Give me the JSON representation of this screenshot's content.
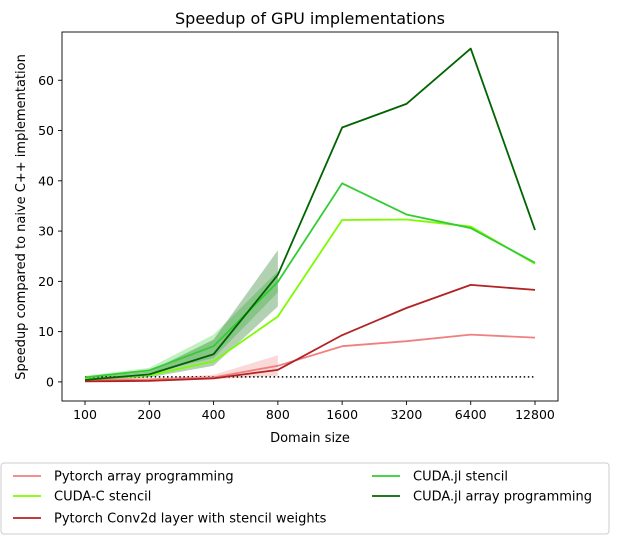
{
  "chart_data": {
    "type": "line",
    "title": "Speedup of GPU implementations",
    "xlabel": "Domain size",
    "ylabel": "Speedup compared to naive C++ implementation",
    "x": [
      "100",
      "200",
      "400",
      "800",
      "1600",
      "3200",
      "6400",
      "12800"
    ],
    "y_ticks": [
      0,
      10,
      20,
      30,
      40,
      50,
      60
    ],
    "ylim": [
      -3.8,
      69.6
    ],
    "grid": false,
    "legend_placement": "below",
    "baseline": {
      "y": 1,
      "style": "dotted",
      "color": "#000000"
    },
    "series": [
      {
        "name": "Pytorch array programming",
        "color": "#f08080",
        "values": [
          0.4,
          0.5,
          0.9,
          3.2,
          7.1,
          8.1,
          9.4,
          8.8
        ],
        "band_upper": [
          0.6,
          0.7,
          1.4,
          5.3
        ],
        "band_lower": [
          0.2,
          0.3,
          0.5,
          1.2
        ]
      },
      {
        "name": "CUDA-C stencil",
        "color": "#7cfc00",
        "values": [
          0.5,
          1.3,
          4.1,
          13.0,
          32.2,
          32.3,
          30.9,
          23.5
        ]
      },
      {
        "name": "Pytorch Conv2d layer with stencil weights",
        "color": "#b22222",
        "values": [
          0.1,
          0.2,
          0.7,
          2.4,
          9.3,
          14.7,
          19.3,
          18.3
        ]
      },
      {
        "name": "CUDA.jl stencil",
        "color": "#32cd32",
        "values": [
          0.9,
          2.3,
          7.1,
          19.9,
          39.5,
          33.3,
          30.6,
          23.7
        ],
        "band_upper": [
          1.2,
          2.8,
          9.4,
          22.0
        ],
        "band_lower": [
          0.6,
          1.8,
          4.7,
          17.8
        ]
      },
      {
        "name": "CUDA.jl array programming",
        "color": "#006400",
        "values": [
          0.4,
          1.5,
          5.5,
          21.3,
          50.6,
          55.3,
          66.3,
          30.2
        ],
        "band_upper": [
          0.7,
          2.1,
          8.4,
          26.2
        ],
        "band_lower": [
          0.2,
          0.9,
          3.2,
          15.0
        ]
      }
    ]
  }
}
